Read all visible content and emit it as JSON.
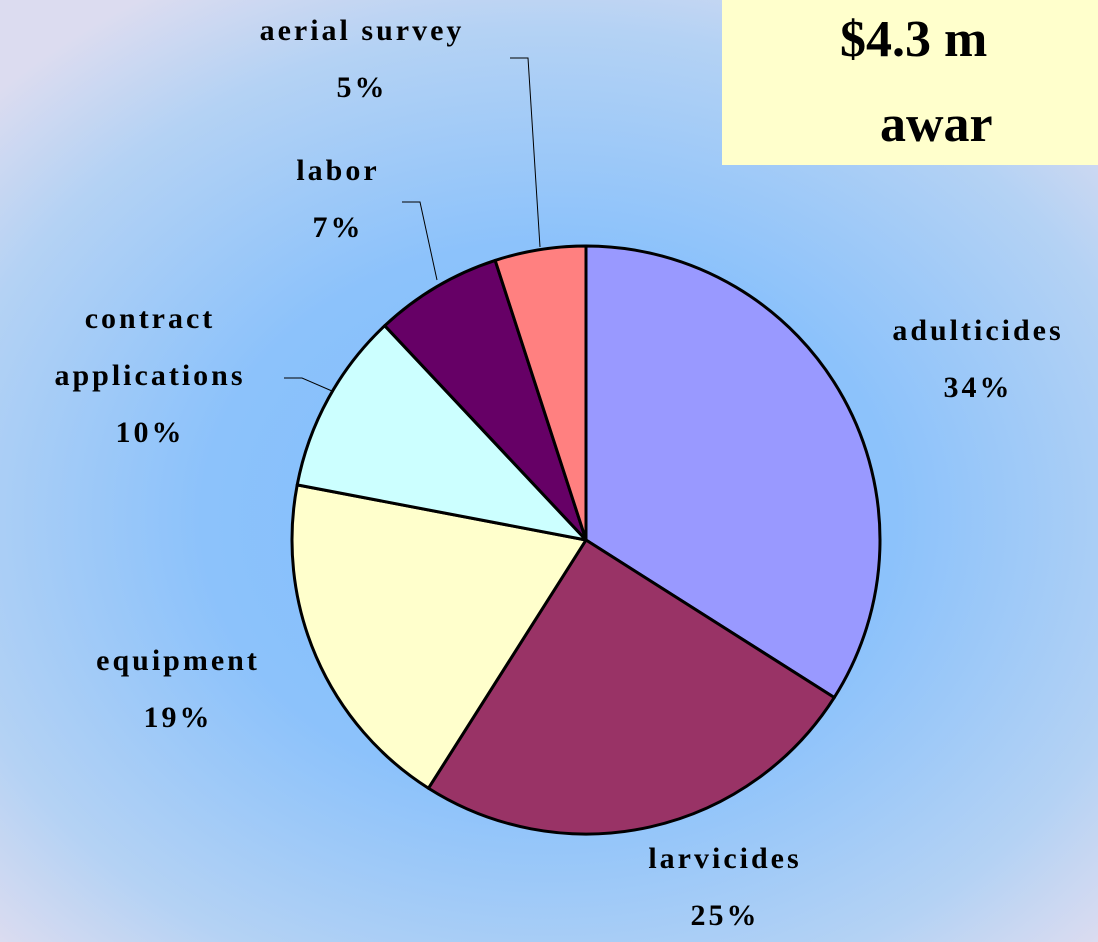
{
  "chart_data": {
    "type": "pie",
    "title_lines": [
      "$4.3 m",
      "awar"
    ],
    "categories": [
      "adulticides",
      "larvicides",
      "equipment",
      "contract applications",
      "labor",
      "aerial survey"
    ],
    "values": [
      34,
      25,
      19,
      10,
      7,
      5
    ],
    "value_labels": [
      "34%",
      "25%",
      "19%",
      "10%",
      "7%",
      "5%"
    ],
    "colors": [
      "#9999ff",
      "#993366",
      "#ffffcc",
      "#ccffff",
      "#660066",
      "#ff8080"
    ]
  }
}
